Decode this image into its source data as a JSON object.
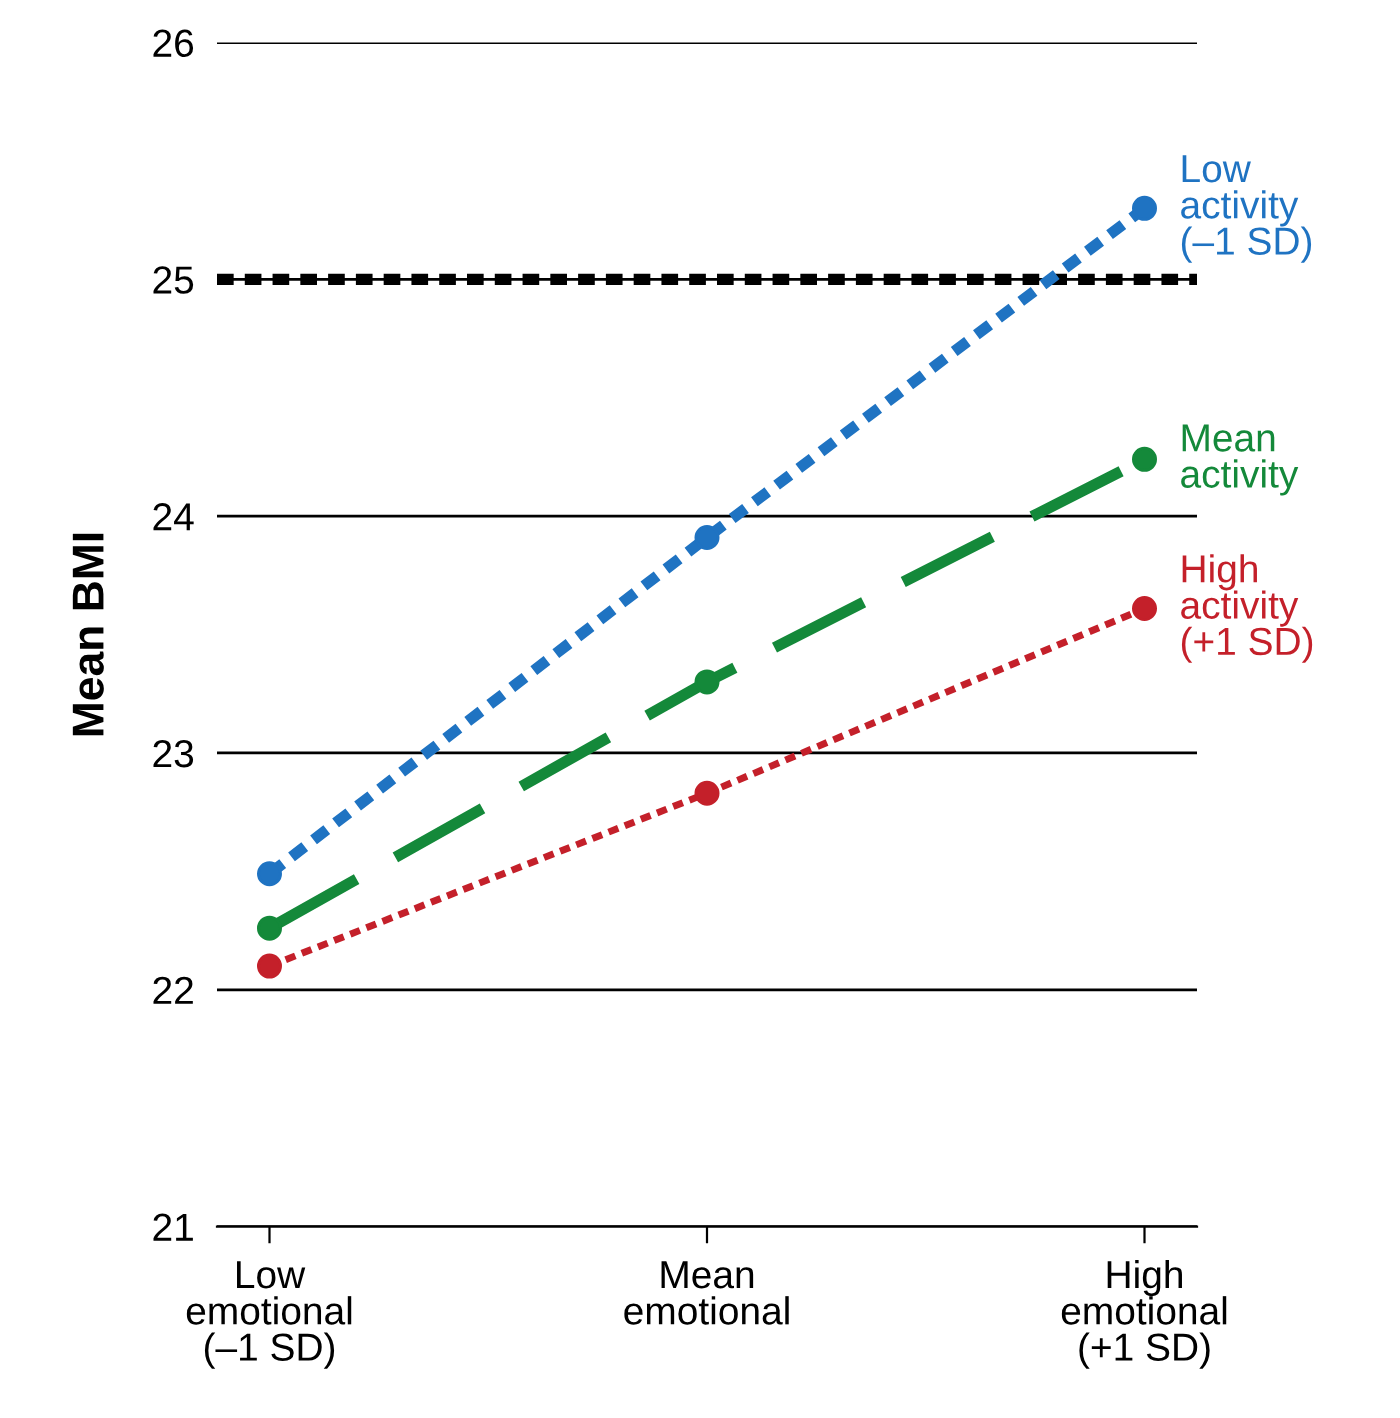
{
  "chart_data": {
    "type": "line",
    "ylabel": "Mean BMI",
    "categories": [
      "Low\nemotional\n(–1 SD)",
      "Mean\nemotional",
      "High\nemotional\n(+1 SD)"
    ],
    "series": [
      {
        "name": "Low\nactivity\n(–1 SD)",
        "color": "#1f73c2",
        "values": [
          22.49,
          23.91,
          25.3
        ],
        "line_style": "dotted"
      },
      {
        "name": "Mean\nactivity",
        "color": "#14893a",
        "values": [
          22.26,
          23.3,
          24.24
        ],
        "line_style": "dashed"
      },
      {
        "name": "High\nactivity\n(+1 SD)",
        "color": "#c4202a",
        "values": [
          22.1,
          22.83,
          23.61
        ],
        "line_style": "dotted"
      }
    ],
    "ylim": [
      21,
      26
    ],
    "yticks": [
      21,
      22,
      23,
      24,
      25,
      26
    ],
    "grid": "y",
    "marker": "circle",
    "legend": false,
    "ref_lines": [
      {
        "axis": "y",
        "value": 25,
        "color": "#000000",
        "line_style": "dotted"
      }
    ]
  }
}
